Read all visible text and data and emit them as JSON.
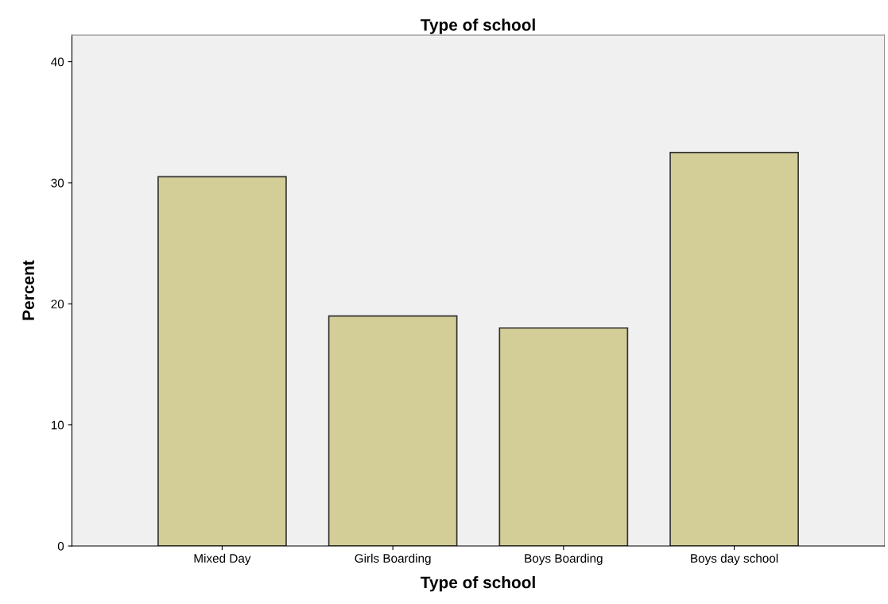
{
  "chart_data": {
    "type": "bar",
    "title": "Type of school",
    "xlabel": "Type of school",
    "ylabel": "Percent",
    "categories": [
      "Mixed Day",
      "Girls Boarding",
      "Boys Boarding",
      "Boys day school"
    ],
    "values": [
      30.5,
      19.0,
      18.0,
      32.5
    ],
    "color": "#d3cd97",
    "ylim": [
      0,
      42.2
    ],
    "yticks": [
      0,
      10,
      20,
      30,
      40
    ],
    "grid": false,
    "legend": false
  }
}
